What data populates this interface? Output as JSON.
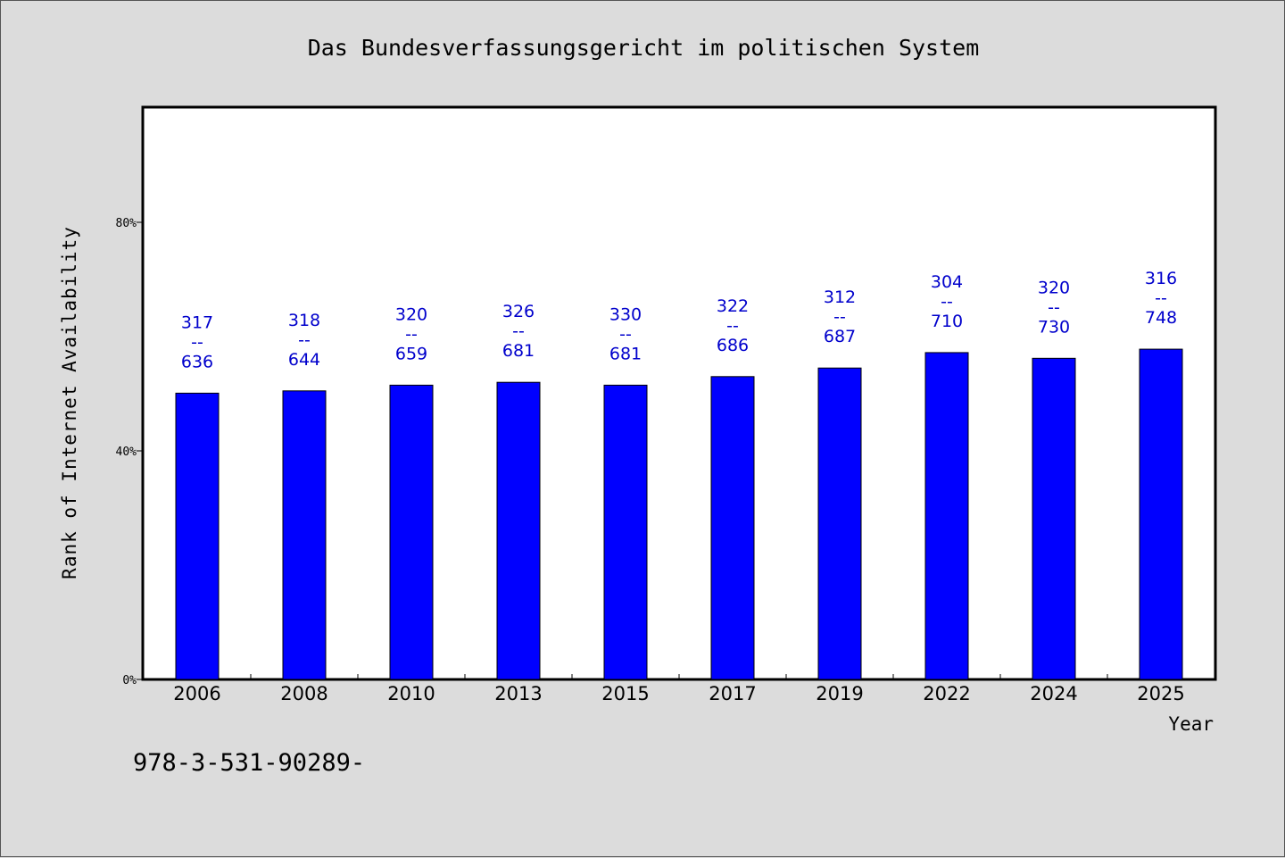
{
  "chart_data": {
    "type": "bar",
    "title": "Das Bundesverfassungsgericht im politischen System",
    "xlabel": "Year",
    "ylabel": "Rank of Internet Availability",
    "categories": [
      "2006",
      "2008",
      "2010",
      "2013",
      "2015",
      "2017",
      "2019",
      "2022",
      "2024",
      "2025"
    ],
    "values": [
      50.1,
      50.5,
      51.5,
      52.0,
      51.5,
      53.0,
      54.5,
      57.2,
      56.2,
      57.8
    ],
    "data_labels": [
      {
        "top": "317",
        "sep": "--",
        "bottom": "636"
      },
      {
        "top": "318",
        "sep": "--",
        "bottom": "644"
      },
      {
        "top": "320",
        "sep": "--",
        "bottom": "659"
      },
      {
        "top": "326",
        "sep": "--",
        "bottom": "681"
      },
      {
        "top": "330",
        "sep": "--",
        "bottom": "681"
      },
      {
        "top": "322",
        "sep": "--",
        "bottom": "686"
      },
      {
        "top": "312",
        "sep": "--",
        "bottom": "687"
      },
      {
        "top": "304",
        "sep": "--",
        "bottom": "710"
      },
      {
        "top": "320",
        "sep": "--",
        "bottom": "730"
      },
      {
        "top": "316",
        "sep": "--",
        "bottom": "748"
      }
    ],
    "yticks": [
      0,
      40,
      80
    ],
    "ytick_labels": [
      "0%",
      "40%",
      "80%"
    ],
    "ylim": [
      0,
      100
    ],
    "grid": false,
    "legend": "none",
    "bar_color": "#0000ff",
    "label_color": "#0000cc"
  },
  "footnote": "978-3-531-90289-"
}
